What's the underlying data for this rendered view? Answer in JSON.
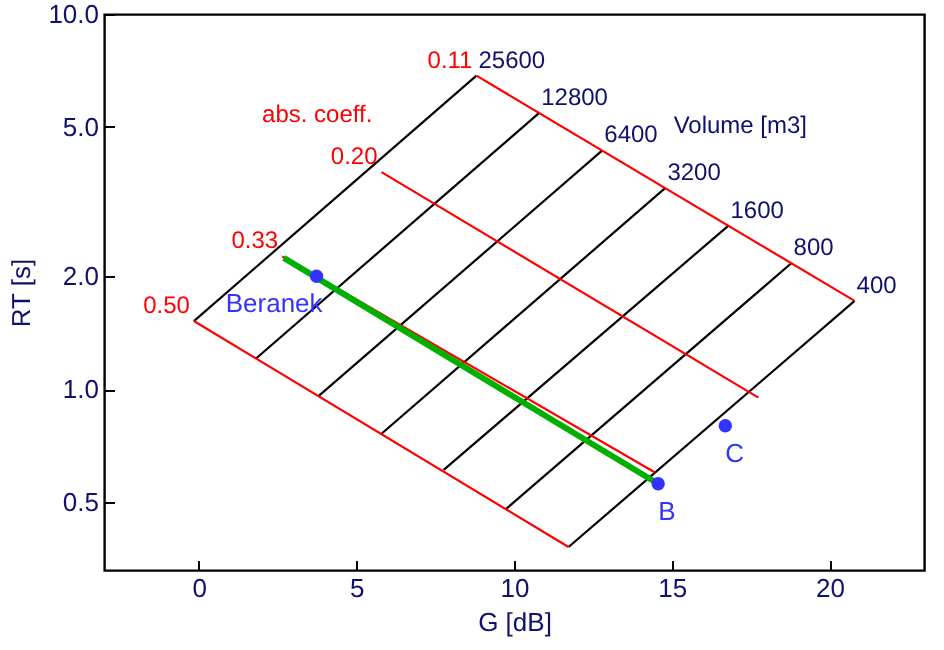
{
  "chart_data": {
    "type": "line",
    "xlabel": "G  [dB]",
    "ylabel": "RT [s]",
    "log": "y",
    "xlim": [
      -3,
      23
    ],
    "ylim": [
      0.33,
      10
    ],
    "xticks": [
      0,
      5,
      10,
      15,
      20
    ],
    "yticks": [
      0.5,
      {
        "value": 1,
        "label": "1.0"
      },
      {
        "value": 2,
        "label": "2.0"
      },
      {
        "value": 5,
        "label": "5.0"
      },
      {
        "value": 10,
        "label": "10.0"
      }
    ],
    "grid": false,
    "annotations": [
      "abs. coeff.",
      "Volume [m3]"
    ],
    "series": [
      {
        "name": "25600",
        "color": "#000000",
        "x": [
          -0.15,
          8.81
        ],
        "values": [
          1.52,
          6.85
        ]
      },
      {
        "name": "12800",
        "color": "#000000",
        "x": [
          1.83,
          10.8
        ],
        "values": [
          1.21,
          5.45
        ]
      },
      {
        "name": "6400",
        "color": "#000000",
        "x": [
          3.81,
          12.8
        ],
        "values": [
          0.96,
          4.33
        ]
      },
      {
        "name": "3200",
        "color": "#000000",
        "x": [
          5.79,
          14.8
        ],
        "values": [
          0.76,
          3.44
        ]
      },
      {
        "name": "1600",
        "color": "#000000",
        "x": [
          7.77,
          16.8
        ],
        "values": [
          0.61,
          2.73
        ]
      },
      {
        "name": "800",
        "color": "#000000",
        "x": [
          9.75,
          18.8
        ],
        "values": [
          0.48,
          2.17
        ]
      },
      {
        "name": "400",
        "color": "#000000",
        "x": [
          11.73,
          20.8
        ],
        "values": [
          0.38,
          1.72
        ]
      },
      {
        "name": "0.50",
        "color": "#ff0000",
        "x": [
          -0.15,
          11.73
        ],
        "values": [
          1.52,
          0.38
        ]
      },
      {
        "name": "0.33",
        "color": "#ff0000",
        "x": [
          2.65,
          14.47
        ],
        "values": [
          2.26,
          0.6
        ]
      },
      {
        "name": "0.20",
        "color": "#ff0000",
        "x": [
          5.8,
          17.75
        ],
        "values": [
          3.79,
          0.95
        ]
      },
      {
        "name": "0.11",
        "color": "#ff0000",
        "x": [
          8.81,
          20.8
        ],
        "values": [
          6.85,
          1.72
        ]
      },
      {
        "color": "#00b000",
        "x": [
          2.7,
          14.57
        ],
        "values": [
          2.24,
          0.56
        ]
      },
      {
        "type": "scatter",
        "marker": "circle",
        "name": "Beranek",
        "color": "#3333ff",
        "x": [
          3.74
        ],
        "values": [
          2.0
        ]
      },
      {
        "type": "scatter",
        "marker": "circle",
        "name": "B",
        "color": "#3333ff",
        "x": [
          14.57
        ],
        "values": [
          0.56
        ]
      },
      {
        "type": "scatter",
        "marker": "circle",
        "name": "C",
        "color": "#3333ff",
        "x": [
          16.7
        ],
        "values": [
          0.8
        ]
      }
    ]
  }
}
